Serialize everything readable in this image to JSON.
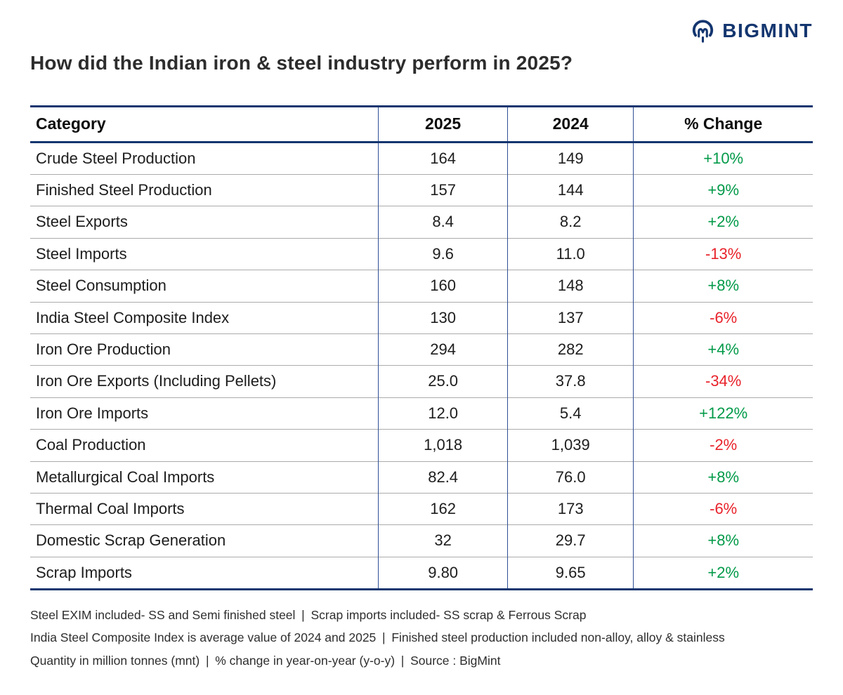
{
  "logo": {
    "brand": "BIGMINT"
  },
  "chart_data": {
    "type": "table",
    "title": "How did the Indian iron & steel industry perform in 2025?",
    "columns": [
      "Category",
      "2025",
      "2024",
      "% Change"
    ],
    "rows": [
      [
        "Crude Steel Production",
        "164",
        "149",
        "+10%"
      ],
      [
        "Finished Steel Production",
        "157",
        "144",
        "+9%"
      ],
      [
        "Steel Exports",
        "8.4",
        "8.2",
        "+2%"
      ],
      [
        "Steel Imports",
        "9.6",
        "11.0",
        "-13%"
      ],
      [
        "Steel Consumption",
        "160",
        "148",
        "+8%"
      ],
      [
        "India Steel Composite Index",
        "130",
        "137",
        "-6%"
      ],
      [
        "Iron Ore Production",
        "294",
        "282",
        "+4%"
      ],
      [
        "Iron Ore Exports (Including Pellets)",
        "25.0",
        "37.8",
        "-34%"
      ],
      [
        "Iron Ore Imports",
        "12.0",
        "5.4",
        "+122%"
      ],
      [
        "Coal Production",
        "1,018",
        "1,039",
        "-2%"
      ],
      [
        "Metallurgical Coal Imports",
        "82.4",
        "76.0",
        "+8%"
      ],
      [
        "Thermal Coal Imports",
        "162",
        "173",
        "-6%"
      ],
      [
        "Domestic Scrap Generation",
        "32",
        "29.7",
        "+8%"
      ],
      [
        "Scrap Imports",
        "9.80",
        "9.65",
        "+2%"
      ]
    ],
    "units": "million tonnes (mnt)",
    "change_basis": "year-on-year (y-o-y)"
  },
  "footnotes": [
    "Steel EXIM included- SS and Semi finished steel | Scrap imports included- SS scrap & Ferrous Scrap",
    "India Steel Composite Index is average value of 2024 and 2025 | Finished steel production included non-alloy, alloy & stainless",
    "Quantity in million tonnes (mnt) | % change in year-on-year (y-o-y) | Source : BigMint"
  ],
  "colors": {
    "navy": "#14366F",
    "positive": "#029A49",
    "negative": "#E8232B"
  }
}
